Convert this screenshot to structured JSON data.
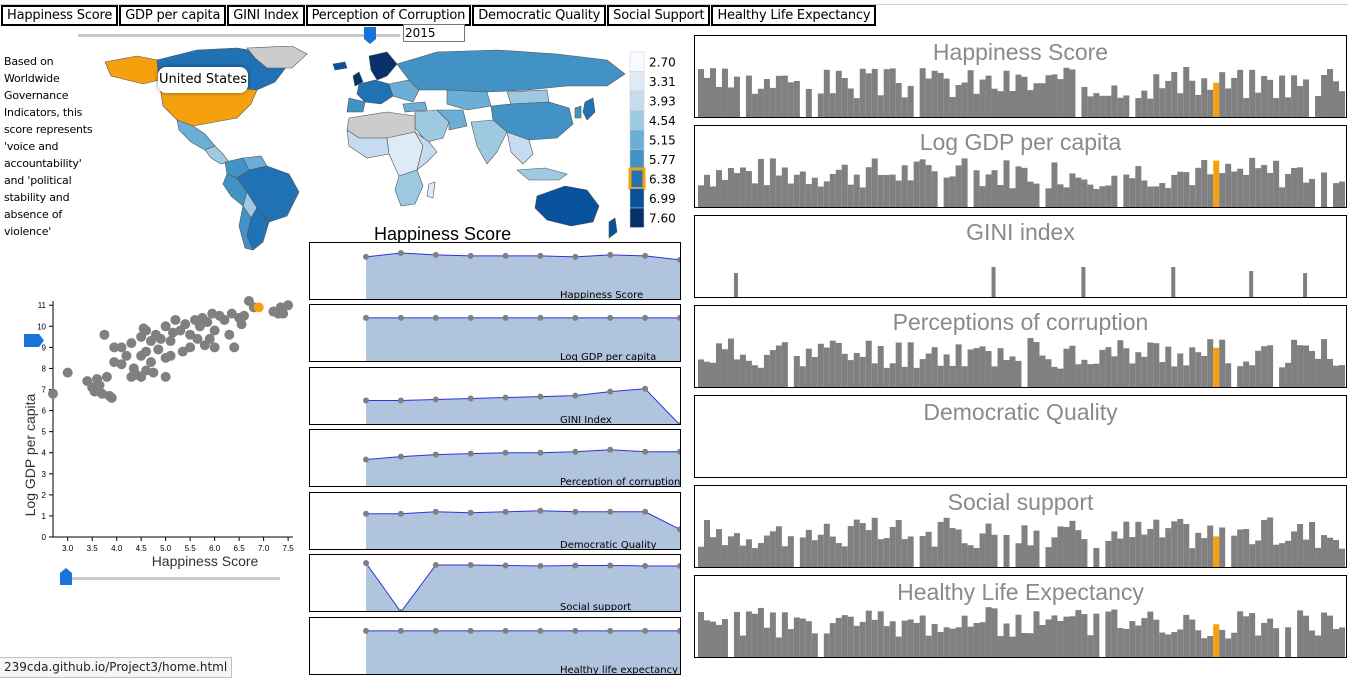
{
  "tabs": [
    "Happiness Score",
    "GDP per capita",
    "GINI Index",
    "Perception of Corruption",
    "Democratic Quality",
    "Social Support",
    "Healthy Life Expectancy"
  ],
  "year": "2015",
  "description": "Based on Worldwide Governance Indicators, this score represents 'voice and accountability' and 'political stability and absence of violence'",
  "map": {
    "tooltip": "United States",
    "legend_values": [
      "2.70",
      "3.31",
      "3.93",
      "4.54",
      "5.15",
      "5.77",
      "6.38",
      "6.99",
      "7.60"
    ],
    "legend_colors": [
      "#f7fbff",
      "#deebf7",
      "#c6dbef",
      "#9ecae1",
      "#6baed6",
      "#4292c6",
      "#2171b5",
      "#08519c",
      "#08306b"
    ],
    "highlight_index": 6,
    "highlight_color": "#f5a10e",
    "no_data_color": "#cccccc"
  },
  "mini_charts": {
    "title": "Happiness Score",
    "fill": "#b0c4de",
    "line": "#2b35d8",
    "point": "#808080",
    "items": [
      {
        "label": "Happiness Score",
        "values": [
          0.88,
          0.96,
          0.92,
          0.9,
          0.9,
          0.9,
          0.88,
          0.92,
          0.9,
          0.82
        ]
      },
      {
        "label": "Log GDP per capita",
        "values": [
          0.9,
          0.9,
          0.9,
          0.9,
          0.9,
          0.9,
          0.9,
          0.9,
          0.9,
          0.9
        ]
      },
      {
        "label": "GINI Index",
        "values": [
          0.5,
          0.5,
          0.52,
          0.54,
          0.56,
          0.58,
          0.6,
          0.68,
          0.74,
          0.0
        ]
      },
      {
        "label": "Perception of corruption",
        "values": [
          0.56,
          0.62,
          0.66,
          0.68,
          0.7,
          0.7,
          0.72,
          0.76,
          0.72,
          0.72
        ]
      },
      {
        "label": "Democratic Quality",
        "values": [
          0.74,
          0.74,
          0.78,
          0.76,
          0.78,
          0.8,
          0.78,
          0.78,
          0.78,
          0.42
        ]
      },
      {
        "label": "Social support",
        "values": [
          1.0,
          0.0,
          0.96,
          0.96,
          0.95,
          0.94,
          0.95,
          0.95,
          0.94,
          0.94
        ]
      },
      {
        "label": "Healthy life expectancy",
        "values": [
          0.9,
          0.9,
          0.9,
          0.9,
          0.9,
          0.9,
          0.9,
          0.9,
          0.9,
          0.9
        ]
      }
    ]
  },
  "scatter": {
    "xlabel": "Happiness Score",
    "ylabel": "Log GDP per capita",
    "xticks": [
      "3.0",
      "3.5",
      "4.0",
      "4.5",
      "5.0",
      "5.5",
      "6.0",
      "6.5",
      "7.0",
      "7.5"
    ],
    "yticks": [
      "0",
      "1",
      "2",
      "3",
      "4",
      "5",
      "6",
      "7",
      "8",
      "9",
      "10",
      "11"
    ],
    "xlim": [
      2.7,
      7.6
    ],
    "ylim": [
      0,
      11.2
    ],
    "point_color": "#808080",
    "highlight_color": "#f5a10e",
    "highlight": [
      6.9,
      10.9
    ],
    "points": [
      [
        2.7,
        6.8
      ],
      [
        3.0,
        7.8
      ],
      [
        3.4,
        7.4
      ],
      [
        3.5,
        7.1
      ],
      [
        3.55,
        6.9
      ],
      [
        3.6,
        7.5
      ],
      [
        3.65,
        7.2
      ],
      [
        3.7,
        6.8
      ],
      [
        3.75,
        9.6
      ],
      [
        3.8,
        7.6
      ],
      [
        3.85,
        6.7
      ],
      [
        3.9,
        6.6
      ],
      [
        3.95,
        8.3
      ],
      [
        3.95,
        9.0
      ],
      [
        4.1,
        8.2
      ],
      [
        4.1,
        9.0
      ],
      [
        4.2,
        8.6
      ],
      [
        4.3,
        7.6
      ],
      [
        4.3,
        9.2
      ],
      [
        4.35,
        8.0
      ],
      [
        4.4,
        7.7
      ],
      [
        4.5,
        7.6
      ],
      [
        4.5,
        8.6
      ],
      [
        4.5,
        9.5
      ],
      [
        4.55,
        9.9
      ],
      [
        4.6,
        9.8
      ],
      [
        4.6,
        7.9
      ],
      [
        4.6,
        8.8
      ],
      [
        4.7,
        9.3
      ],
      [
        4.7,
        8.3
      ],
      [
        4.75,
        7.8
      ],
      [
        4.8,
        9.6
      ],
      [
        4.85,
        8.9
      ],
      [
        4.9,
        9.4
      ],
      [
        5.0,
        10.0
      ],
      [
        5.0,
        8.5
      ],
      [
        5.0,
        7.6
      ],
      [
        5.1,
        9.3
      ],
      [
        5.1,
        8.6
      ],
      [
        5.15,
        9.7
      ],
      [
        5.2,
        10.3
      ],
      [
        5.3,
        9.8
      ],
      [
        5.35,
        8.8
      ],
      [
        5.4,
        10.1
      ],
      [
        5.5,
        9.6
      ],
      [
        5.5,
        9.0
      ],
      [
        5.6,
        10.3
      ],
      [
        5.65,
        9.4
      ],
      [
        5.7,
        10.0
      ],
      [
        5.75,
        10.4
      ],
      [
        5.8,
        9.1
      ],
      [
        5.85,
        10.2
      ],
      [
        5.9,
        9.4
      ],
      [
        5.95,
        10.6
      ],
      [
        6.0,
        9.8
      ],
      [
        6.0,
        9.0
      ],
      [
        6.1,
        10.5
      ],
      [
        6.2,
        10.3
      ],
      [
        6.3,
        9.6
      ],
      [
        6.35,
        10.6
      ],
      [
        6.4,
        9.0
      ],
      [
        6.5,
        10.4
      ],
      [
        6.55,
        10.1
      ],
      [
        6.6,
        10.5
      ],
      [
        6.7,
        11.2
      ],
      [
        6.8,
        10.9
      ],
      [
        7.2,
        10.7
      ],
      [
        7.3,
        10.6
      ],
      [
        7.35,
        10.9
      ],
      [
        7.4,
        10.6
      ],
      [
        7.5,
        11.0
      ]
    ]
  },
  "bar_panels": {
    "bar_color": "#808080",
    "highlight_color": "#f5a10e",
    "highlight_index": 86,
    "items": [
      {
        "title": "Happiness Score",
        "mode": "random",
        "seed": 3
      },
      {
        "title": "Log GDP per capita",
        "mode": "random",
        "seed": 7
      },
      {
        "title": "GINI index",
        "mode": "sparse",
        "bars": [
          6,
          49,
          64,
          79,
          92,
          101
        ]
      },
      {
        "title": "Perceptions of corruption",
        "mode": "random",
        "seed": 11
      },
      {
        "title": "Democratic Quality",
        "mode": "empty"
      },
      {
        "title": "Social support",
        "mode": "random",
        "seed": 17
      },
      {
        "title": "Healthy Life Expectancy",
        "mode": "random",
        "seed": 23
      }
    ]
  },
  "status_url": "239cda.github.io/Project3/home.html"
}
